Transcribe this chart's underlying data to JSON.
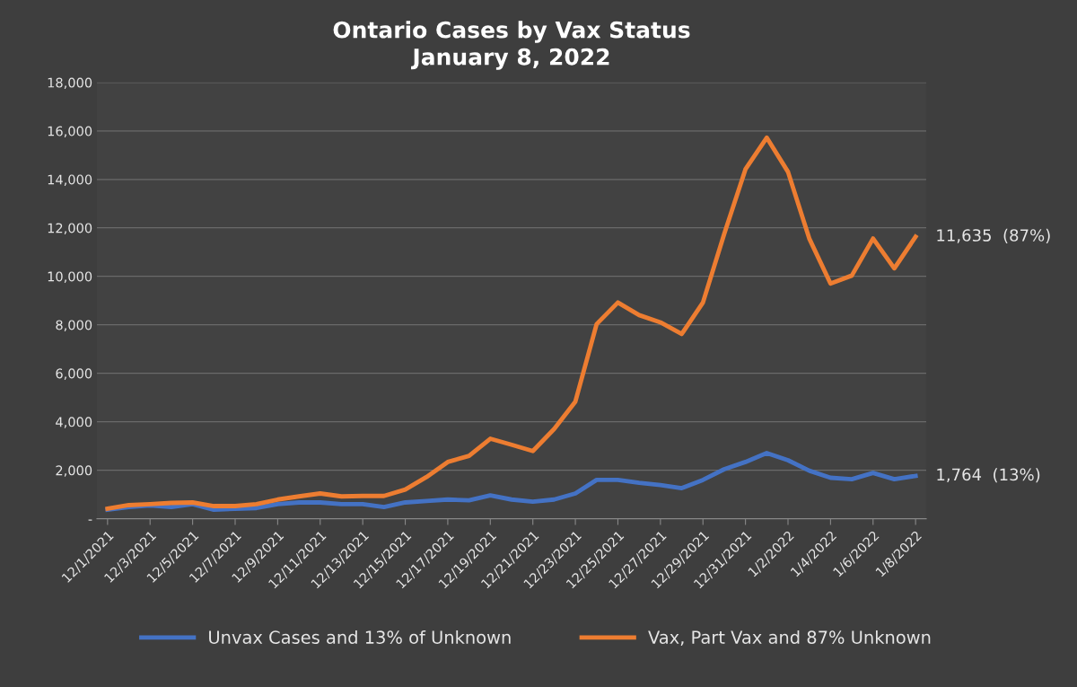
{
  "chart_data": {
    "type": "line",
    "title": "Ontario Cases by Vax Status\nJanuary 8, 2022",
    "categories": [
      "12/1/2021",
      null,
      "12/3/2021",
      null,
      "12/5/2021",
      null,
      "12/7/2021",
      null,
      "12/9/2021",
      null,
      "12/11/2021",
      null,
      "12/13/2021",
      null,
      "12/15/2021",
      null,
      "12/17/2021",
      null,
      "12/19/2021",
      null,
      "12/21/2021",
      null,
      "12/23/2021",
      null,
      "12/25/2021",
      null,
      "12/27/2021",
      null,
      "12/29/2021",
      null,
      "12/31/2021",
      null,
      "1/2/2022",
      null,
      "1/4/2022",
      null,
      "1/6/2022",
      null,
      "1/8/2022"
    ],
    "series": [
      {
        "name": "Unvax Cases and 13% of Unknown",
        "color": "#4472c4",
        "values": [
          370,
          480,
          550,
          480,
          600,
          370,
          410,
          440,
          600,
          670,
          670,
          600,
          600,
          480,
          670,
          730,
          790,
          760,
          960,
          790,
          700,
          790,
          1040,
          1600,
          1600,
          1480,
          1390,
          1260,
          1600,
          2040,
          2340,
          2710,
          2410,
          1980,
          1690,
          1630,
          1890,
          1630,
          1764
        ]
      },
      {
        "name": "Vax, Part Vax and 87% Unknown",
        "color": "#ed7d31",
        "values": [
          410,
          560,
          600,
          650,
          670,
          520,
          520,
          600,
          790,
          920,
          1040,
          920,
          940,
          940,
          1200,
          1720,
          2340,
          2590,
          3300,
          3050,
          2790,
          3700,
          4830,
          8030,
          8920,
          8400,
          8100,
          7620,
          8920,
          11750,
          14420,
          15720,
          14310,
          11560,
          9700,
          10030,
          11560,
          10330,
          11635
        ]
      }
    ],
    "ylim": [
      0,
      18000
    ],
    "yticks": [
      {
        "value": 0,
        "label": "-"
      },
      {
        "value": 2000,
        "label": "2,000"
      },
      {
        "value": 4000,
        "label": "4,000"
      },
      {
        "value": 6000,
        "label": "6,000"
      },
      {
        "value": 8000,
        "label": "8,000"
      },
      {
        "value": 10000,
        "label": "10,000"
      },
      {
        "value": 12000,
        "label": "12,000"
      },
      {
        "value": 14000,
        "label": "14,000"
      },
      {
        "value": 16000,
        "label": "16,000"
      },
      {
        "value": 18000,
        "label": "18,000"
      }
    ],
    "grid": "y",
    "legend": "bottom",
    "marker": "none",
    "line_style": "solid",
    "annotations": [
      {
        "text": "11,635  (87%)",
        "x": "1/8/2022",
        "y": 11635
      },
      {
        "text": "1,764  (13%)",
        "x": "1/8/2022",
        "y": 1764
      }
    ]
  }
}
